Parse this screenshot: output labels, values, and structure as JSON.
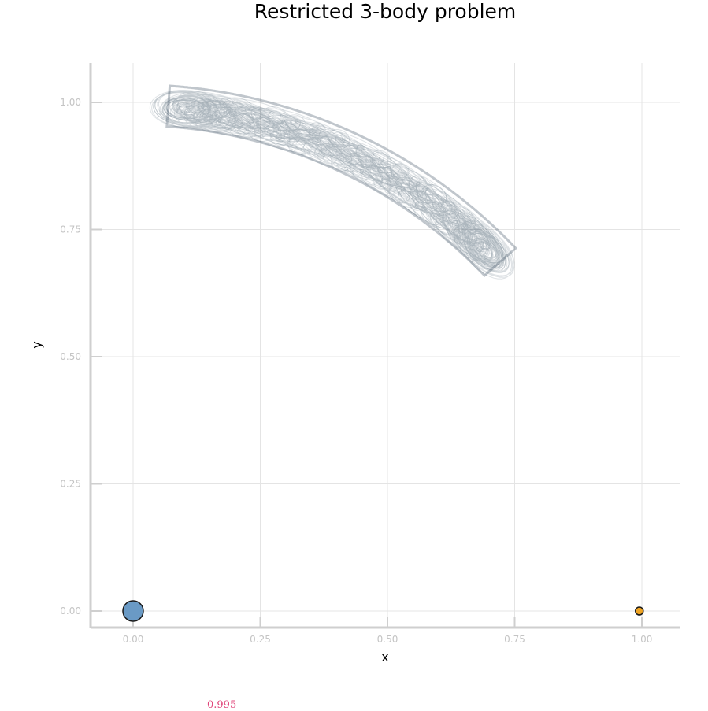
{
  "chart_data": {
    "type": "line",
    "title": "Restricted 3-body problem",
    "xlabel": "x",
    "ylabel": "y",
    "xlim": [
      -0.08,
      1.08
    ],
    "ylim": [
      -0.03,
      1.08
    ],
    "xticks": [
      0.0,
      0.25,
      0.5,
      0.75,
      1.0
    ],
    "xtick_labels": [
      "0.00",
      "0.25",
      "0.50",
      "0.75",
      "1.00"
    ],
    "yticks": [
      0.0,
      0.25,
      0.5,
      0.75,
      1.0
    ],
    "ytick_labels": [
      "0.00",
      "0.25",
      "0.50",
      "0.75",
      "1.00"
    ],
    "grid": true,
    "legend": "none",
    "trajectory": {
      "description": "tadpole orbit around L4, centered near (0.5, 0.87)",
      "color": "#4a5d6e",
      "x_range": [
        0.0,
        0.81
      ],
      "y_range": [
        0.59,
        1.04
      ],
      "endpoints": [
        [
          0.1,
          1.0
        ],
        [
          0.7,
          0.71
        ]
      ]
    },
    "bodies": [
      {
        "name": "primary",
        "x": 0.0,
        "y": 0.0,
        "color": "#6a9ac5"
      },
      {
        "name": "secondary",
        "x": 0.995,
        "y": 0.0,
        "color": "#f0a422"
      }
    ]
  },
  "footer": {
    "note": "0.995"
  }
}
